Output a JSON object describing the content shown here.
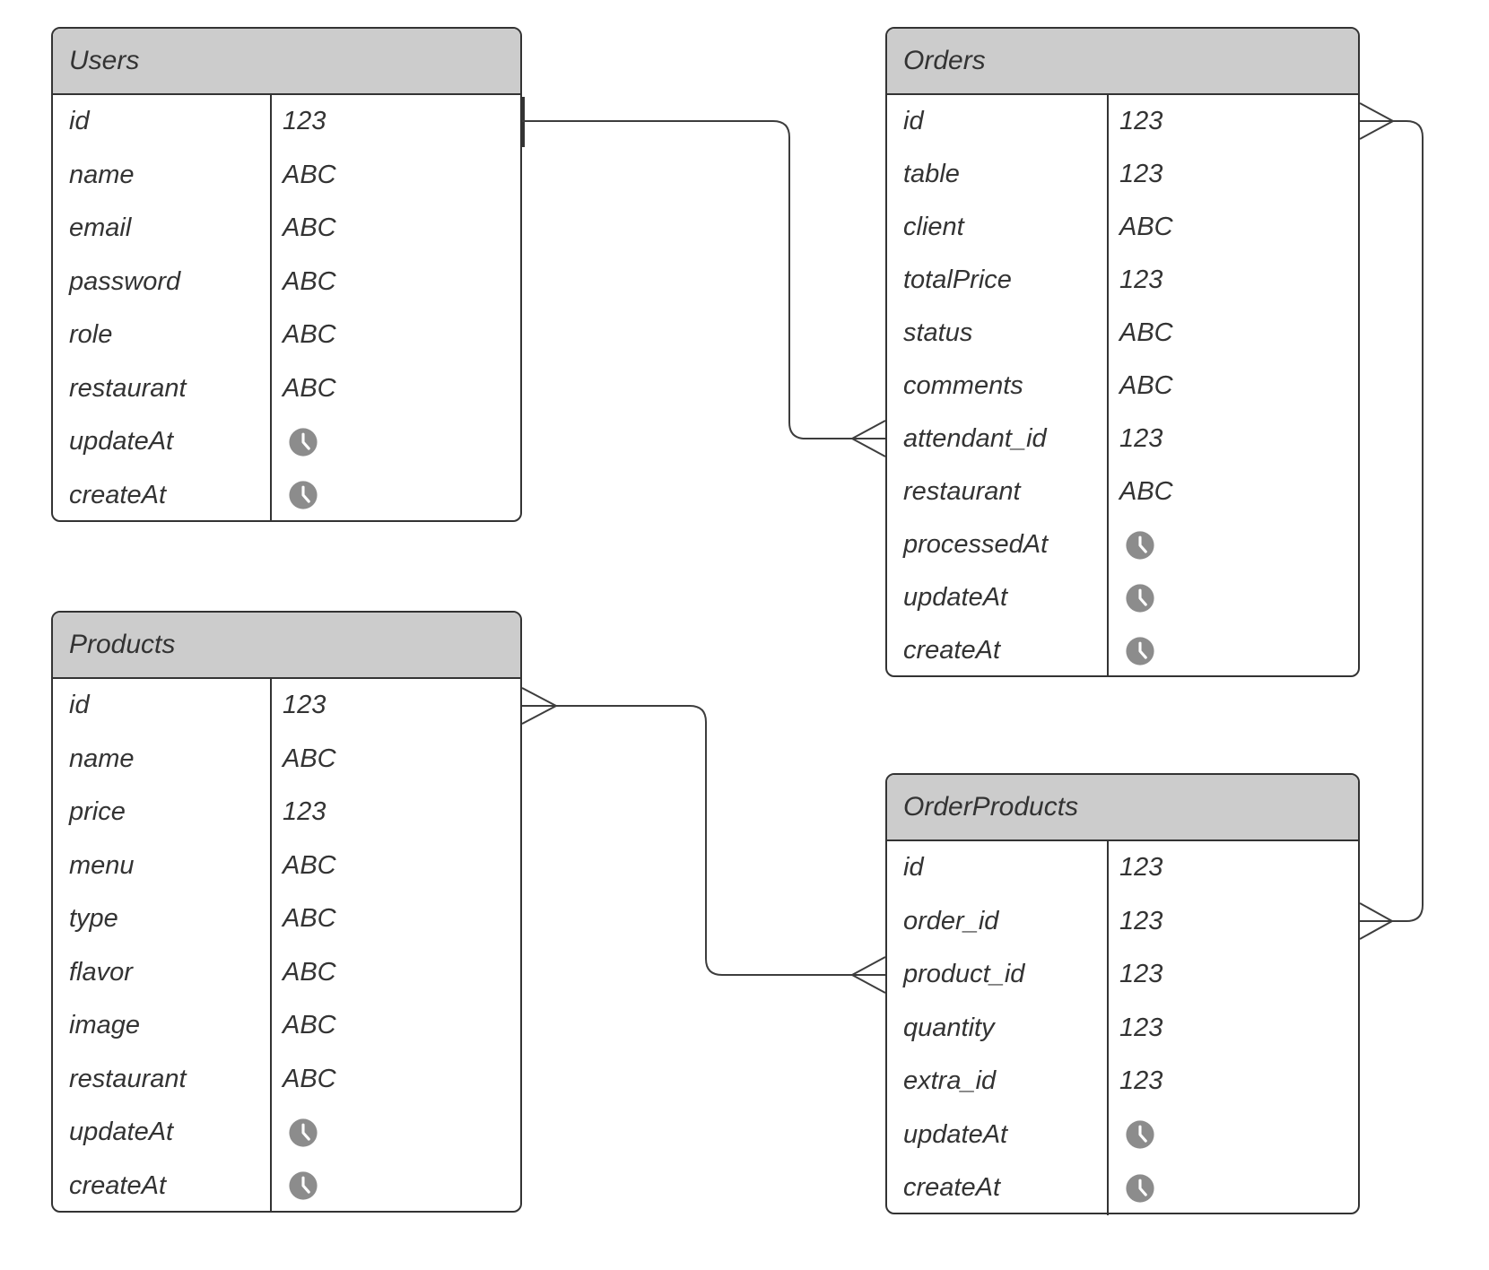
{
  "colors": {
    "header_fill": "#cccccc",
    "border": "#333333",
    "connector": "#3d3d3d",
    "text": "#333333",
    "clock_fill": "#8c8c8c",
    "clock_hands": "#ffffff"
  },
  "tables": [
    {
      "id": "users",
      "title": "Users",
      "fields": [
        {
          "label": "id",
          "value": "123",
          "type": "number"
        },
        {
          "label": "name",
          "value": "ABC",
          "type": "text"
        },
        {
          "label": "email",
          "value": "ABC",
          "type": "text"
        },
        {
          "label": "password",
          "value": "ABC",
          "type": "text"
        },
        {
          "label": "role",
          "value": "ABC",
          "type": "text"
        },
        {
          "label": "restaurant",
          "value": "ABC",
          "type": "text"
        },
        {
          "label": "updateAt",
          "value": "clock-icon",
          "type": "timestamp"
        },
        {
          "label": "createAt",
          "value": "clock-icon",
          "type": "timestamp"
        }
      ]
    },
    {
      "id": "orders",
      "title": "Orders",
      "fields": [
        {
          "label": "id",
          "value": "123",
          "type": "number"
        },
        {
          "label": "table",
          "value": "123",
          "type": "number"
        },
        {
          "label": "client",
          "value": "ABC",
          "type": "text"
        },
        {
          "label": "totalPrice",
          "value": "123",
          "type": "number"
        },
        {
          "label": "status",
          "value": "ABC",
          "type": "text"
        },
        {
          "label": "comments",
          "value": "ABC",
          "type": "text"
        },
        {
          "label": "attendant_id",
          "value": "123",
          "type": "number"
        },
        {
          "label": "restaurant",
          "value": "ABC",
          "type": "text"
        },
        {
          "label": "processedAt",
          "value": "clock-icon",
          "type": "timestamp"
        },
        {
          "label": "updateAt",
          "value": "clock-icon",
          "type": "timestamp"
        },
        {
          "label": "createAt",
          "value": "clock-icon",
          "type": "timestamp"
        }
      ]
    },
    {
      "id": "products",
      "title": "Products",
      "fields": [
        {
          "label": "id",
          "value": "123",
          "type": "number"
        },
        {
          "label": "name",
          "value": "ABC",
          "type": "text"
        },
        {
          "label": "price",
          "value": "123",
          "type": "number"
        },
        {
          "label": "menu",
          "value": "ABC",
          "type": "text"
        },
        {
          "label": "type",
          "value": "ABC",
          "type": "text"
        },
        {
          "label": "flavor",
          "value": "ABC",
          "type": "text"
        },
        {
          "label": "image",
          "value": "ABC",
          "type": "text"
        },
        {
          "label": "restaurant",
          "value": "ABC",
          "type": "text"
        },
        {
          "label": "updateAt",
          "value": "clock-icon",
          "type": "timestamp"
        },
        {
          "label": "createAt",
          "value": "clock-icon",
          "type": "timestamp"
        }
      ]
    },
    {
      "id": "orderproducts",
      "title": "OrderProducts",
      "fields": [
        {
          "label": "id",
          "value": "123",
          "type": "number"
        },
        {
          "label": "order_id",
          "value": "123",
          "type": "number"
        },
        {
          "label": "product_id",
          "value": "123",
          "type": "number"
        },
        {
          "label": "quantity",
          "value": "123",
          "type": "number"
        },
        {
          "label": "extra_id",
          "value": "123",
          "type": "number"
        },
        {
          "label": "updateAt",
          "value": "clock-icon",
          "type": "timestamp"
        },
        {
          "label": "createAt",
          "value": "clock-icon",
          "type": "timestamp"
        }
      ]
    }
  ],
  "relationships": [
    {
      "from": "Users.id",
      "to": "Orders.attendant_id",
      "many_marker_at": "Orders.attendant_id"
    },
    {
      "from": "Orders.id",
      "to": "OrderProducts.order_id",
      "many_marker_at": "both"
    },
    {
      "from": "Products.id",
      "to": "OrderProducts.product_id",
      "many_marker_at": "both"
    }
  ]
}
